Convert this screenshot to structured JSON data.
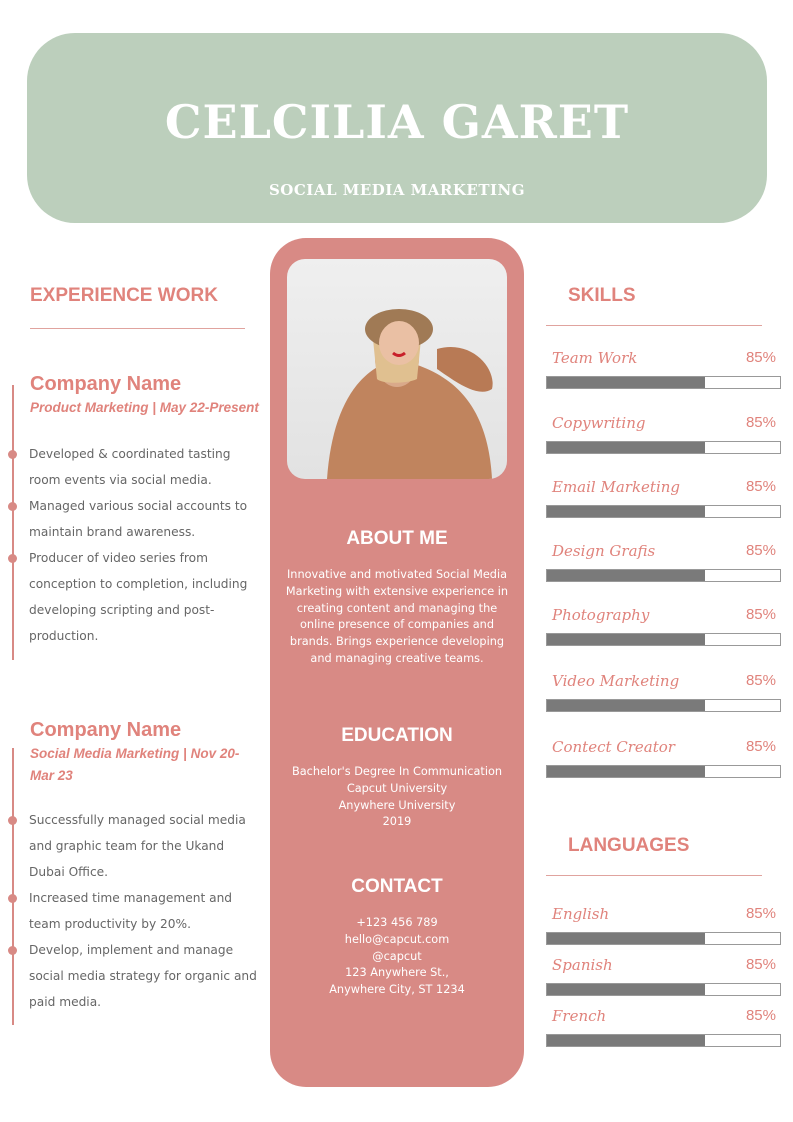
{
  "header": {
    "name": "CELCILIA GARET",
    "role": "SOCIAL MEDIA MARKETING"
  },
  "experience": {
    "title": "EXPERIENCE WORK",
    "jobs": [
      {
        "company": "Company Name",
        "subtitle": "Product Marketing | May 22-Present",
        "bullets": [
          "Developed & coordinated tasting room events via social media.",
          "Managed various social accounts to maintain brand awareness.",
          "Producer of video series from conception to completion, including developing scripting and post-production."
        ]
      },
      {
        "company": "Company Name",
        "subtitle": "Social Media Marketing | Nov 20-Mar 23",
        "bullets": [
          "Successfully managed social media and graphic team for the Ukand Dubai Office.",
          "Increased time management and team productivity by 20%.",
          "Develop, implement and manage social media strategy for organic and  paid media."
        ]
      }
    ]
  },
  "about": {
    "title": "ABOUT ME",
    "text": "Innovative and motivated Social Media Marketing with extensive experience in creating content and managing the online presence of companies and brands. Brings experience developing and managing creative teams."
  },
  "education": {
    "title": "EDUCATION",
    "lines": [
      "Bachelor's Degree In Communication",
      "Capcut University",
      "Anywhere University",
      "2019"
    ]
  },
  "contact": {
    "title": "CONTACT",
    "lines": [
      "+123  456 789",
      "hello@capcut.com",
      "@capcut",
      "123 Anywhere St.,",
      "Anywhere City, ST 1234"
    ]
  },
  "skills": {
    "title": "SKILLS",
    "items": [
      {
        "label": "Team Work",
        "pct": "85%",
        "fill": 0.68
      },
      {
        "label": "Copywriting",
        "pct": "85%",
        "fill": 0.68
      },
      {
        "label": "Email Marketing",
        "pct": "85%",
        "fill": 0.68
      },
      {
        "label": "Design Grafis",
        "pct": "85%",
        "fill": 0.68
      },
      {
        "label": "Photography",
        "pct": "85%",
        "fill": 0.68
      },
      {
        "label": "Video Marketing",
        "pct": "85%",
        "fill": 0.68
      },
      {
        "label": "Contect Creator",
        "pct": "85%",
        "fill": 0.68
      }
    ]
  },
  "languages": {
    "title": "LANGUAGES",
    "items": [
      {
        "label": "English",
        "pct": "85%",
        "fill": 0.68
      },
      {
        "label": "Spanish",
        "pct": "85%",
        "fill": 0.68
      },
      {
        "label": "French",
        "pct": "85%",
        "fill": 0.68
      }
    ]
  },
  "colors": {
    "header_bg": "#bccfbc",
    "accent": "#e0837c",
    "panel": "#d88a85",
    "bar": "#7a7a7a"
  }
}
